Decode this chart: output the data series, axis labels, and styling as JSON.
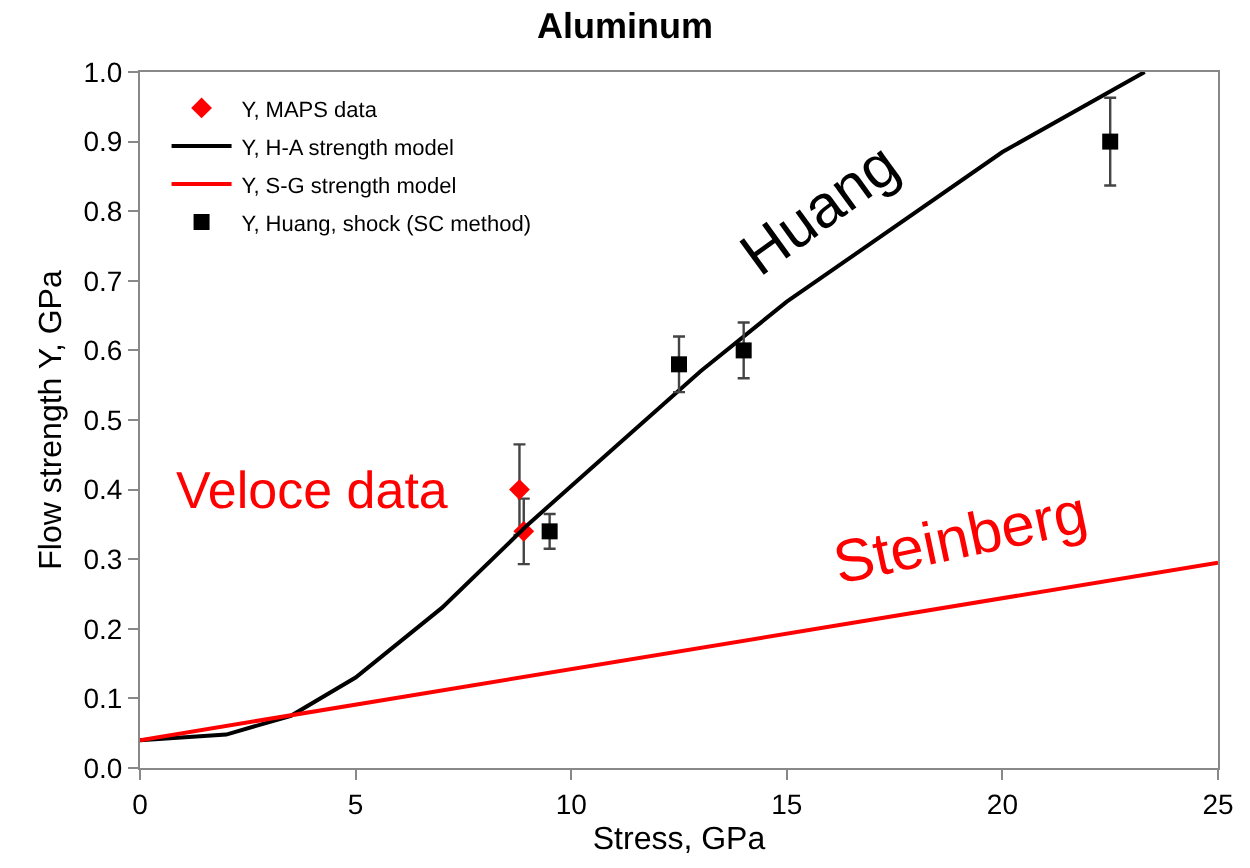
{
  "chart_data": {
    "type": "line",
    "title": "Aluminum",
    "xlabel": "Stress, GPa",
    "ylabel": "Flow strength Y, GPa",
    "xlim": [
      0,
      25
    ],
    "xticks": [
      0,
      5,
      10,
      15,
      20,
      25
    ],
    "ylim": [
      0,
      1.0
    ],
    "yticks": [
      {
        "value": 0,
        "label": "0.0"
      },
      0.1,
      0.2,
      0.3,
      0.4,
      0.5,
      0.6,
      0.7,
      0.8,
      0.9,
      {
        "value": 1,
        "label": "1.0"
      }
    ],
    "legend": "top left",
    "series": [
      {
        "name": "Y, MAPS data",
        "type": "scatter",
        "marker": "diamond",
        "color": "#ff0000",
        "x": [
          8.8,
          8.9
        ],
        "values": [
          0.4,
          0.34
        ],
        "errors": [
          0.065,
          0.047
        ]
      },
      {
        "name": "Y, H-A strength model",
        "marker": "none",
        "color": "#000000",
        "x": [
          0,
          2,
          3.5,
          5,
          7,
          9,
          11,
          13,
          15,
          20,
          23.3
        ],
        "values": [
          0.04,
          0.048,
          0.075,
          0.13,
          0.23,
          0.35,
          0.46,
          0.57,
          0.67,
          0.885,
          1.0
        ]
      },
      {
        "name": "Y, S-G strength model",
        "marker": "none",
        "color": "#ff0000",
        "x": [
          0,
          25
        ],
        "values": [
          0.04,
          0.295
        ]
      },
      {
        "name": "Y, Huang, shock (SC method)",
        "type": "scatter",
        "marker": "square",
        "color": "#000000",
        "x": [
          9.5,
          12.5,
          14,
          22.5
        ],
        "values": [
          0.34,
          0.58,
          0.6,
          0.9
        ],
        "errors": [
          0.025,
          0.04,
          0.04,
          0.063
        ]
      }
    ],
    "annotations": [
      "Veloce data",
      "Huang",
      "Steinberg"
    ]
  }
}
